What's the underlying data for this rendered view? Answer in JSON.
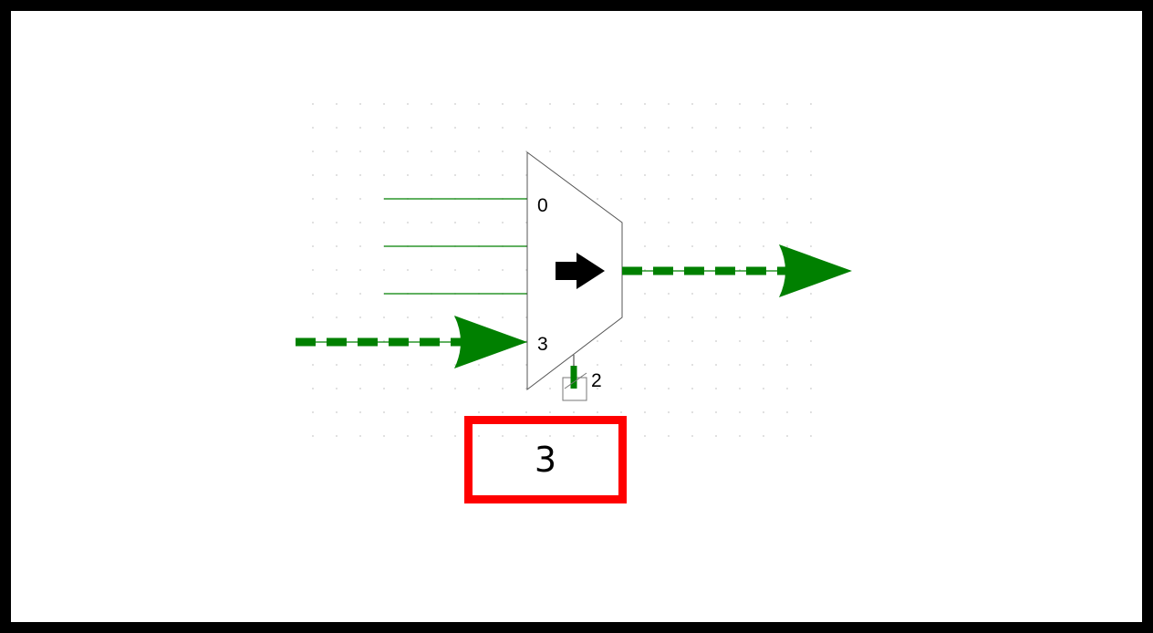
{
  "colors": {
    "wire": "#008000",
    "selection_box": "#ff0000",
    "mux_outline": "#555555",
    "grid_dot": "#cccccc"
  },
  "mux": {
    "input_labels": [
      "0",
      "",
      "",
      "3"
    ],
    "select_bit_width": "2",
    "active_input": "3"
  },
  "selection_display": {
    "value": "3"
  },
  "icons": {
    "direction": "right-arrow-icon",
    "input_flow": "green-arrow-icon",
    "output_flow": "green-arrow-icon"
  }
}
